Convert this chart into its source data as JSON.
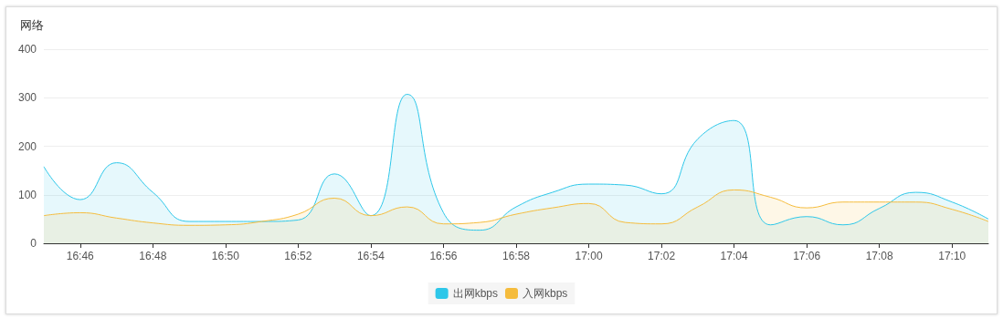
{
  "chart_data": {
    "type": "area",
    "title": "网络",
    "x": [
      16.75,
      16.766667,
      16.783333,
      16.8,
      16.816667,
      16.833333,
      16.85,
      16.866667,
      16.883333,
      16.9,
      16.916667,
      16.933333,
      16.95,
      16.966667,
      16.983333,
      17.0,
      17.016667,
      17.033333,
      17.05,
      17.066667,
      17.083333,
      17.1,
      17.116667,
      17.133333,
      17.15,
      17.166667,
      17.183333
    ],
    "series": [
      {
        "name": "出网kbps",
        "color": "#2ec7e9",
        "values": [
          158,
          90,
          166,
          105,
          45,
          45,
          45,
          48,
          143,
          57,
          307,
          63,
          27,
          75,
          105,
          122,
          120,
          102,
          215,
          253,
          38,
          55,
          38,
          72,
          105,
          85,
          50
        ]
      },
      {
        "name": "入网kbps",
        "color": "#f5bc3d",
        "values": [
          57,
          63,
          52,
          42,
          37,
          38,
          45,
          60,
          93,
          57,
          75,
          40,
          43,
          60,
          73,
          82,
          43,
          40,
          75,
          110,
          95,
          73,
          85,
          85,
          85,
          70,
          45
        ]
      }
    ],
    "xlim": [
      16.75,
      17.183333
    ],
    "xticks": [
      {
        "value": 16.766667,
        "label": "16:46"
      },
      {
        "value": 16.8,
        "label": "16:48"
      },
      {
        "value": 16.833333,
        "label": "16:50"
      },
      {
        "value": 16.866667,
        "label": "16:52"
      },
      {
        "value": 16.9,
        "label": "16:54"
      },
      {
        "value": 16.933333,
        "label": "16:56"
      },
      {
        "value": 16.966667,
        "label": "16:58"
      },
      {
        "value": 17.0,
        "label": "17:00"
      },
      {
        "value": 17.033333,
        "label": "17:02"
      },
      {
        "value": 17.066667,
        "label": "17:04"
      },
      {
        "value": 17.1,
        "label": "17:06"
      },
      {
        "value": 17.133333,
        "label": "17:08"
      },
      {
        "value": 17.166667,
        "label": "17:10"
      }
    ],
    "ylim": [
      0,
      400
    ],
    "yticks": [
      0,
      100,
      200,
      300,
      400
    ],
    "grid": "y",
    "legend": "bottom",
    "marker": "none"
  }
}
